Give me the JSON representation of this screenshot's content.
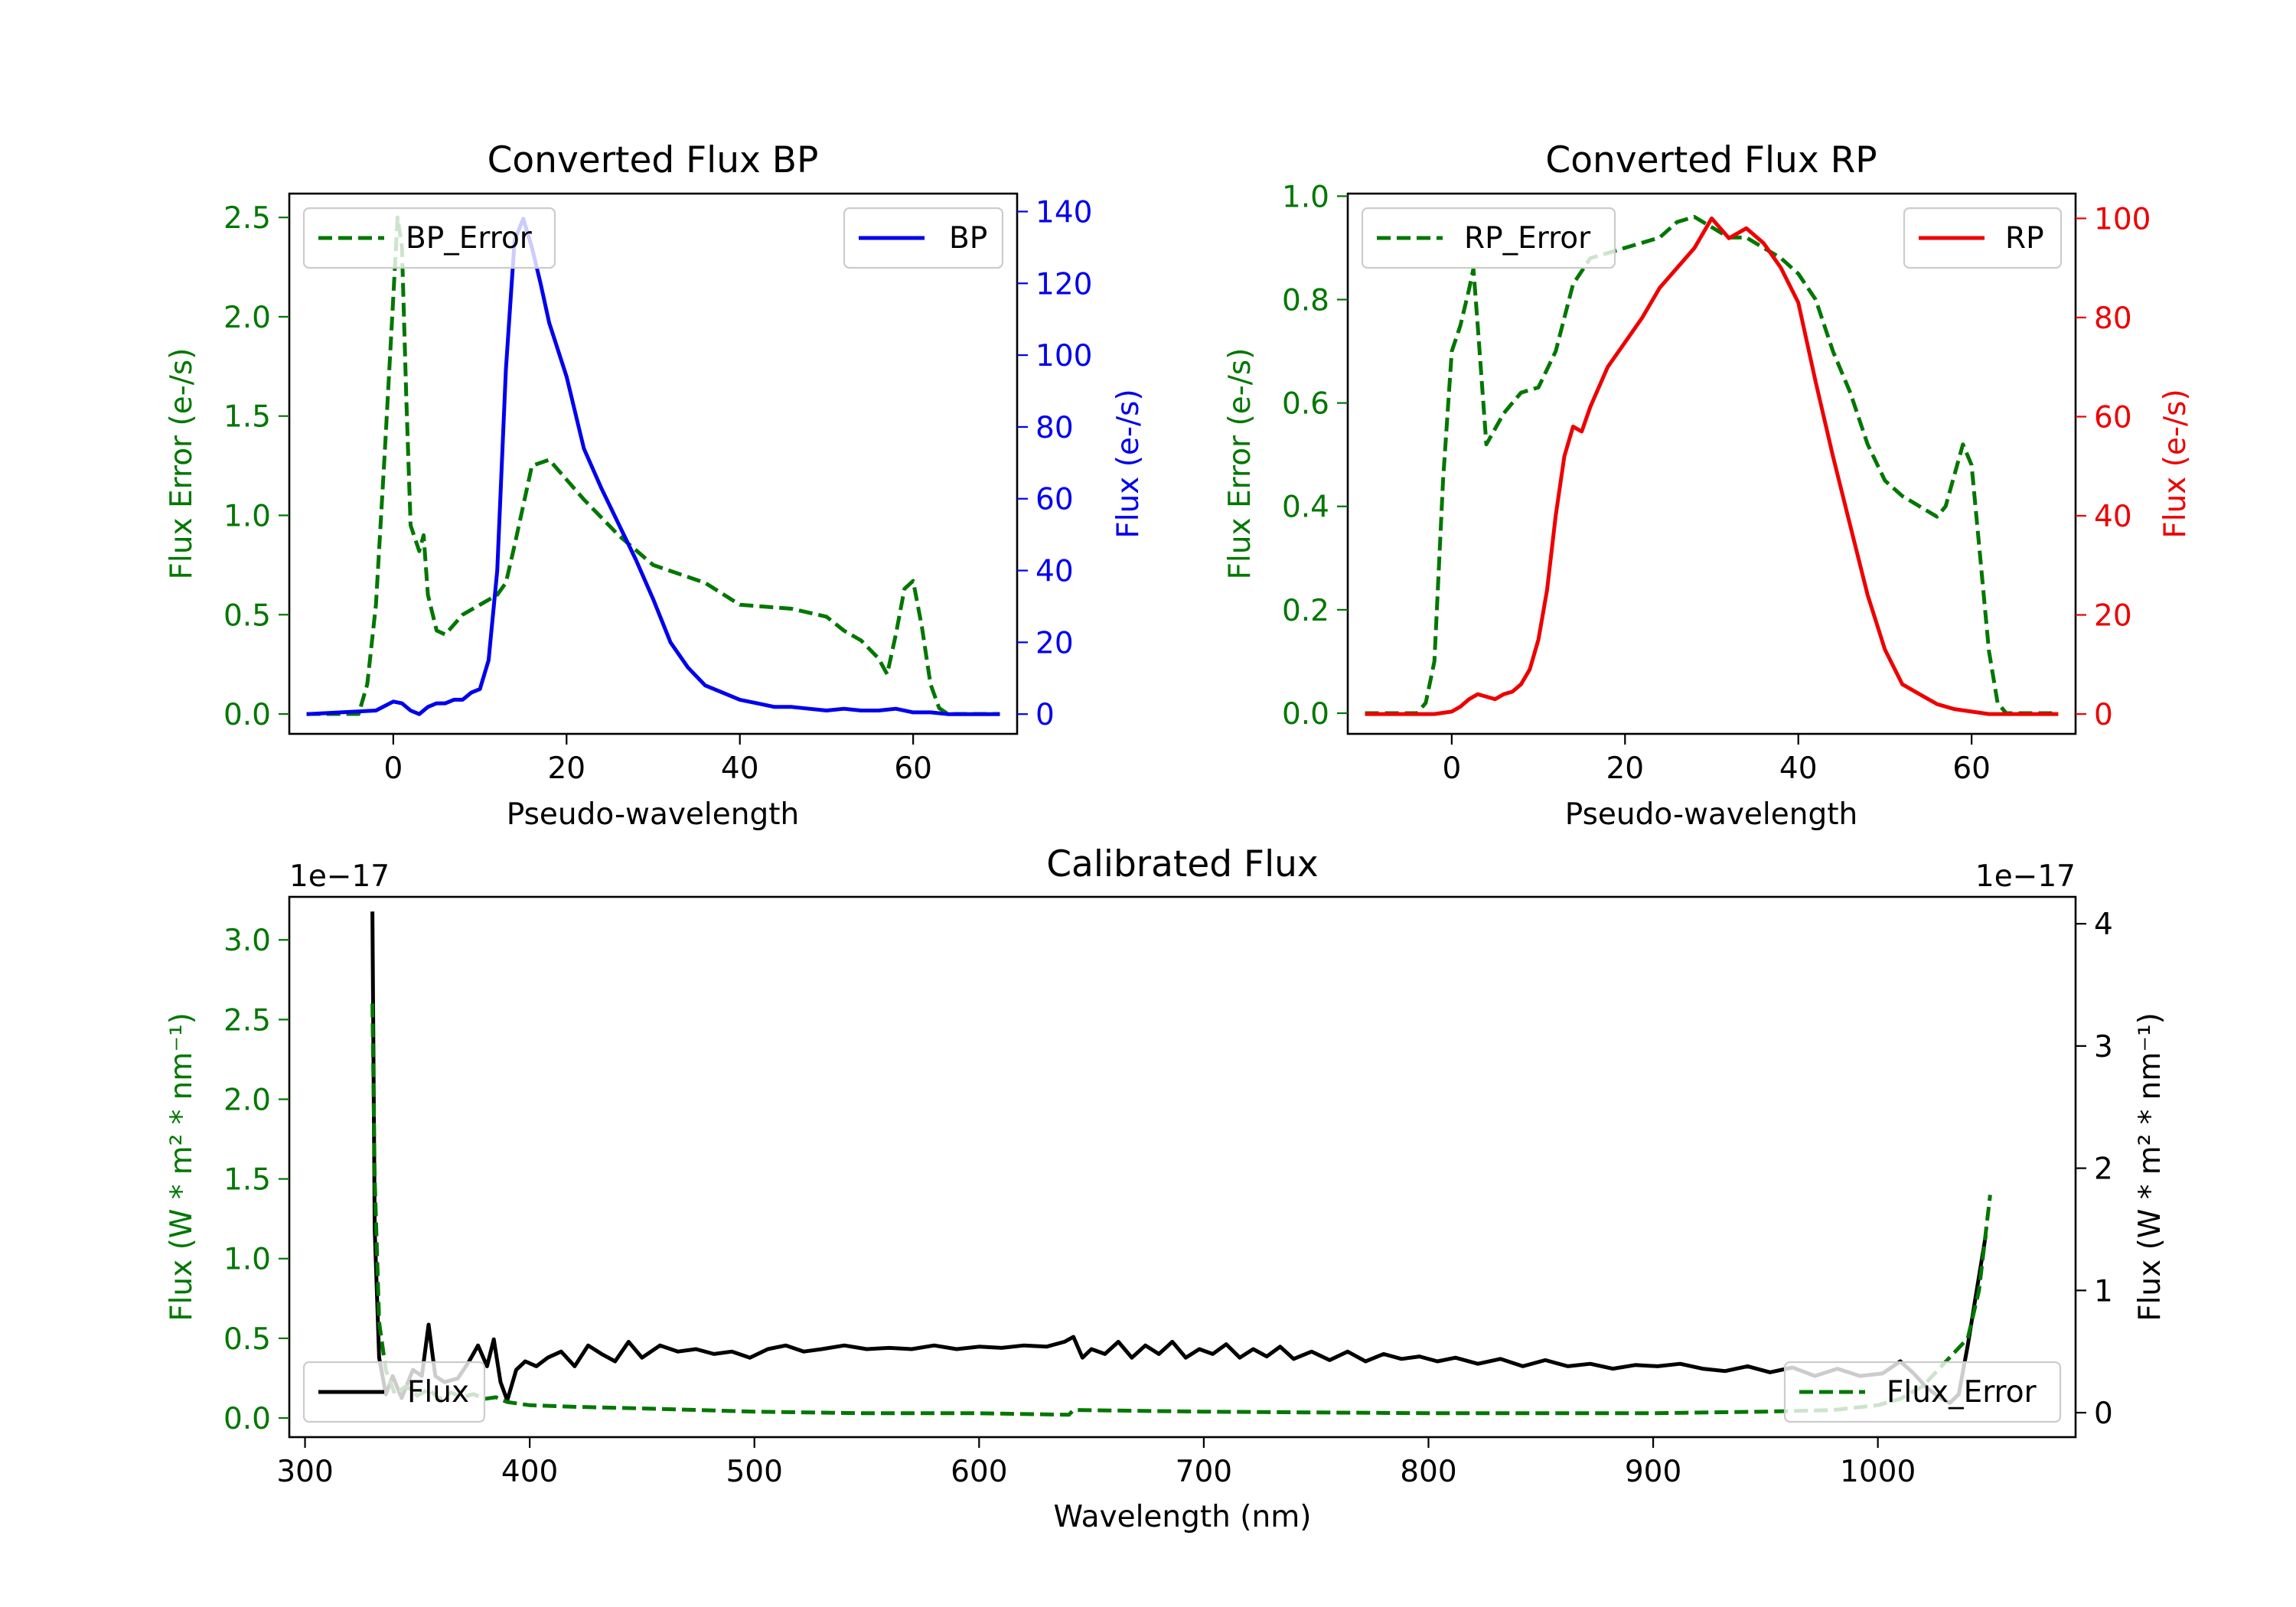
{
  "colors": {
    "green": "#007700",
    "blue": "#0000ee",
    "red": "#ee0000",
    "black": "#000000"
  },
  "chart_data": [
    {
      "id": "bp",
      "type": "line",
      "title": "Converted Flux BP",
      "xlabel": "Pseudo-wavelength",
      "ylabel_left": "Flux Error (e-/s)",
      "ylabel_right": "Flux (e-/s)",
      "xlim": [
        -12,
        72
      ],
      "xticks": [
        0,
        20,
        40,
        60
      ],
      "ylim_left": [
        -0.1,
        2.62
      ],
      "yticks_left": [
        0.0,
        0.5,
        1.0,
        1.5,
        2.0,
        2.5
      ],
      "ytick_labels_left": [
        "0.0",
        "0.5",
        "1.0",
        "1.5",
        "2.0",
        "2.5"
      ],
      "ylim_right": [
        -5.5,
        145
      ],
      "yticks_right": [
        0,
        20,
        40,
        60,
        80,
        100,
        120,
        140
      ],
      "ytick_labels_right": [
        "0",
        "20",
        "40",
        "60",
        "80",
        "100",
        "120",
        "140"
      ],
      "series": [
        {
          "name": "BP_Error",
          "axis": "left",
          "color": "green",
          "dashed": true,
          "legend": "top-left",
          "x": [
            -10,
            -4,
            -3,
            -2,
            -1,
            0,
            0.5,
            1,
            1.5,
            2,
            3,
            3.5,
            4,
            5,
            6,
            8,
            10,
            12,
            13,
            14,
            16,
            18,
            22,
            26,
            30,
            36,
            40,
            46,
            50,
            52,
            54,
            56,
            57,
            58,
            59,
            60,
            61,
            62,
            63,
            64,
            65,
            66,
            68,
            70
          ],
          "y": [
            0,
            0,
            0.15,
            0.55,
            1.3,
            2.1,
            2.5,
            2.35,
            1.6,
            0.95,
            0.82,
            0.9,
            0.6,
            0.42,
            0.4,
            0.5,
            0.55,
            0.6,
            0.66,
            0.85,
            1.25,
            1.28,
            1.08,
            0.9,
            0.75,
            0.66,
            0.55,
            0.53,
            0.49,
            0.42,
            0.37,
            0.28,
            0.2,
            0.4,
            0.63,
            0.67,
            0.44,
            0.15,
            0.03,
            0,
            0,
            0,
            0,
            0
          ]
        },
        {
          "name": "BP",
          "axis": "right",
          "color": "blue",
          "dashed": false,
          "legend": "top-right",
          "x": [
            -10,
            -2,
            0,
            1,
            2,
            3,
            4,
            5,
            6,
            7,
            8,
            9,
            10,
            11,
            12,
            13,
            14,
            15,
            16,
            17,
            18,
            20,
            22,
            24,
            26,
            28,
            30,
            32,
            34,
            36,
            38,
            40,
            42,
            44,
            46,
            48,
            50,
            52,
            54,
            56,
            58,
            60,
            62,
            64,
            66,
            68,
            70
          ],
          "y": [
            0,
            1,
            3.5,
            3,
            1,
            0,
            2,
            3,
            3,
            4,
            4,
            6,
            7,
            15,
            40,
            96,
            132,
            138,
            130,
            120,
            109,
            94,
            74,
            63,
            53,
            43,
            32,
            20,
            13,
            8,
            6,
            4,
            3,
            2,
            2,
            1.5,
            1,
            1.5,
            1,
            1,
            1.5,
            0.5,
            0.5,
            0,
            0,
            0,
            0
          ]
        }
      ]
    },
    {
      "id": "rp",
      "type": "line",
      "title": "Converted Flux RP",
      "xlabel": "Pseudo-wavelength",
      "ylabel_left": "Flux Error (e-/s)",
      "ylabel_right": "Flux (e-/s)",
      "xlim": [
        -12,
        72
      ],
      "xticks": [
        0,
        20,
        40,
        60
      ],
      "ylim_left": [
        -0.04,
        1.005
      ],
      "yticks_left": [
        0.0,
        0.2,
        0.4,
        0.6,
        0.8,
        1.0
      ],
      "ytick_labels_left": [
        "0.0",
        "0.2",
        "0.4",
        "0.6",
        "0.8",
        "1.0"
      ],
      "ylim_right": [
        -4,
        105
      ],
      "yticks_right": [
        0,
        20,
        40,
        60,
        80,
        100
      ],
      "ytick_labels_right": [
        "0",
        "20",
        "40",
        "60",
        "80",
        "100"
      ],
      "series": [
        {
          "name": "RP_Error",
          "axis": "left",
          "color": "green",
          "dashed": true,
          "legend": "top-left",
          "x": [
            -10,
            -4,
            -3,
            -2,
            -1,
            0,
            1,
            2,
            2.5,
            3,
            4,
            5,
            6,
            8,
            10,
            12,
            14,
            16,
            18,
            20,
            22,
            24,
            26,
            28,
            30,
            32,
            34,
            36,
            38,
            40,
            42,
            44,
            46,
            48,
            50,
            52,
            54,
            56,
            57,
            58,
            59,
            60,
            61,
            62,
            63,
            64,
            66,
            70
          ],
          "y": [
            0,
            0,
            0.02,
            0.1,
            0.45,
            0.7,
            0.75,
            0.82,
            0.86,
            0.75,
            0.52,
            0.55,
            0.58,
            0.62,
            0.63,
            0.7,
            0.83,
            0.88,
            0.89,
            0.9,
            0.91,
            0.92,
            0.95,
            0.96,
            0.94,
            0.92,
            0.92,
            0.9,
            0.88,
            0.85,
            0.8,
            0.7,
            0.62,
            0.52,
            0.45,
            0.42,
            0.4,
            0.38,
            0.4,
            0.46,
            0.52,
            0.48,
            0.3,
            0.12,
            0.02,
            0,
            0,
            0
          ]
        },
        {
          "name": "RP",
          "axis": "right",
          "color": "red",
          "dashed": false,
          "legend": "top-right",
          "x": [
            -10,
            -2,
            0,
            1,
            2,
            3,
            4,
            5,
            6,
            7,
            8,
            9,
            10,
            11,
            12,
            13,
            14,
            15,
            16,
            18,
            20,
            22,
            24,
            26,
            28,
            30,
            32,
            34,
            36,
            38,
            40,
            42,
            44,
            46,
            48,
            50,
            52,
            54,
            56,
            58,
            60,
            62,
            64,
            66,
            68,
            70
          ],
          "y": [
            0,
            0,
            0.5,
            1.5,
            3,
            4,
            3.5,
            3,
            4,
            4.5,
            6,
            9,
            15,
            25,
            40,
            52,
            58,
            57,
            62,
            70,
            75,
            80,
            86,
            90,
            94,
            100,
            96,
            98,
            95,
            90,
            83,
            67,
            52,
            38,
            24,
            13,
            6,
            4,
            2,
            1,
            0.5,
            0,
            0,
            0,
            0,
            0
          ]
        }
      ]
    },
    {
      "id": "cal",
      "type": "line",
      "title": "Calibrated Flux",
      "xlabel": "Wavelength (nm)",
      "ylabel_left": "Flux (W * m² * nm⁻¹)",
      "ylabel_right": "Flux (W * m² * nm⁻¹)",
      "offset_left": "1e−17",
      "offset_right": "1e−17",
      "xlim": [
        293,
        1088
      ],
      "xticks": [
        300,
        400,
        500,
        600,
        700,
        800,
        900,
        1000
      ],
      "ylim_left": [
        -0.12,
        3.27
      ],
      "yticks_left": [
        0.0,
        0.5,
        1.0,
        1.5,
        2.0,
        2.5,
        3.0
      ],
      "ytick_labels_left": [
        "0.0",
        "0.5",
        "1.0",
        "1.5",
        "2.0",
        "2.5",
        "3.0"
      ],
      "ylim_right": [
        -0.2,
        4.22
      ],
      "yticks_right": [
        0,
        1,
        2,
        3,
        4
      ],
      "ytick_labels_right": [
        "0",
        "1",
        "2",
        "3",
        "4"
      ],
      "series": [
        {
          "name": "Flux",
          "axis": "right",
          "color": "black",
          "dashed": false,
          "legend": "bottom-left",
          "x": [
            330,
            331,
            333,
            336,
            339,
            343,
            348,
            352,
            355,
            358,
            362,
            368,
            373,
            377,
            381,
            384,
            387,
            390,
            394,
            398,
            403,
            408,
            414,
            420,
            426,
            432,
            438,
            444,
            450,
            458,
            466,
            474,
            482,
            490,
            498,
            506,
            514,
            522,
            530,
            540,
            550,
            560,
            570,
            580,
            590,
            600,
            610,
            620,
            630,
            638,
            642,
            646,
            650,
            656,
            662,
            668,
            674,
            680,
            686,
            692,
            698,
            704,
            710,
            716,
            722,
            728,
            734,
            740,
            748,
            756,
            764,
            772,
            780,
            788,
            796,
            804,
            812,
            822,
            832,
            842,
            852,
            862,
            872,
            882,
            892,
            902,
            912,
            922,
            932,
            942,
            952,
            962,
            972,
            982,
            992,
            1002,
            1010,
            1016,
            1022,
            1028,
            1032,
            1036,
            1040,
            1044,
            1048
          ],
          "y": [
            4.1,
            1.5,
            0.45,
            0.15,
            0.3,
            0.12,
            0.35,
            0.3,
            0.72,
            0.3,
            0.25,
            0.28,
            0.42,
            0.55,
            0.38,
            0.6,
            0.25,
            0.1,
            0.35,
            0.42,
            0.38,
            0.45,
            0.5,
            0.38,
            0.55,
            0.48,
            0.42,
            0.58,
            0.45,
            0.55,
            0.5,
            0.52,
            0.48,
            0.5,
            0.45,
            0.52,
            0.55,
            0.5,
            0.52,
            0.55,
            0.52,
            0.53,
            0.52,
            0.55,
            0.52,
            0.54,
            0.53,
            0.55,
            0.54,
            0.58,
            0.62,
            0.45,
            0.52,
            0.48,
            0.58,
            0.45,
            0.55,
            0.48,
            0.58,
            0.45,
            0.52,
            0.48,
            0.56,
            0.45,
            0.52,
            0.46,
            0.54,
            0.44,
            0.5,
            0.43,
            0.5,
            0.42,
            0.48,
            0.44,
            0.46,
            0.42,
            0.45,
            0.4,
            0.44,
            0.38,
            0.43,
            0.38,
            0.4,
            0.36,
            0.39,
            0.38,
            0.4,
            0.36,
            0.34,
            0.38,
            0.33,
            0.37,
            0.3,
            0.36,
            0.3,
            0.32,
            0.42,
            0.32,
            0.2,
            0.12,
            0.08,
            0.15,
            0.55,
            1.0,
            1.45
          ]
        },
        {
          "name": "Flux_Error",
          "axis": "left",
          "color": "green",
          "dashed": true,
          "legend": "bottom-right",
          "x": [
            330,
            331,
            333,
            336,
            340,
            345,
            350,
            355,
            360,
            365,
            370,
            375,
            380,
            385,
            390,
            400,
            420,
            450,
            500,
            550,
            600,
            640,
            642,
            700,
            800,
            900,
            950,
            980,
            1000,
            1010,
            1020,
            1030,
            1040,
            1045,
            1050
          ],
          "y": [
            2.6,
            1.5,
            0.6,
            0.3,
            0.15,
            0.2,
            0.14,
            0.18,
            0.12,
            0.16,
            0.13,
            0.15,
            0.12,
            0.13,
            0.1,
            0.08,
            0.07,
            0.06,
            0.04,
            0.03,
            0.03,
            0.02,
            0.05,
            0.04,
            0.03,
            0.03,
            0.04,
            0.05,
            0.08,
            0.12,
            0.2,
            0.35,
            0.5,
            0.8,
            1.4
          ]
        }
      ]
    }
  ]
}
